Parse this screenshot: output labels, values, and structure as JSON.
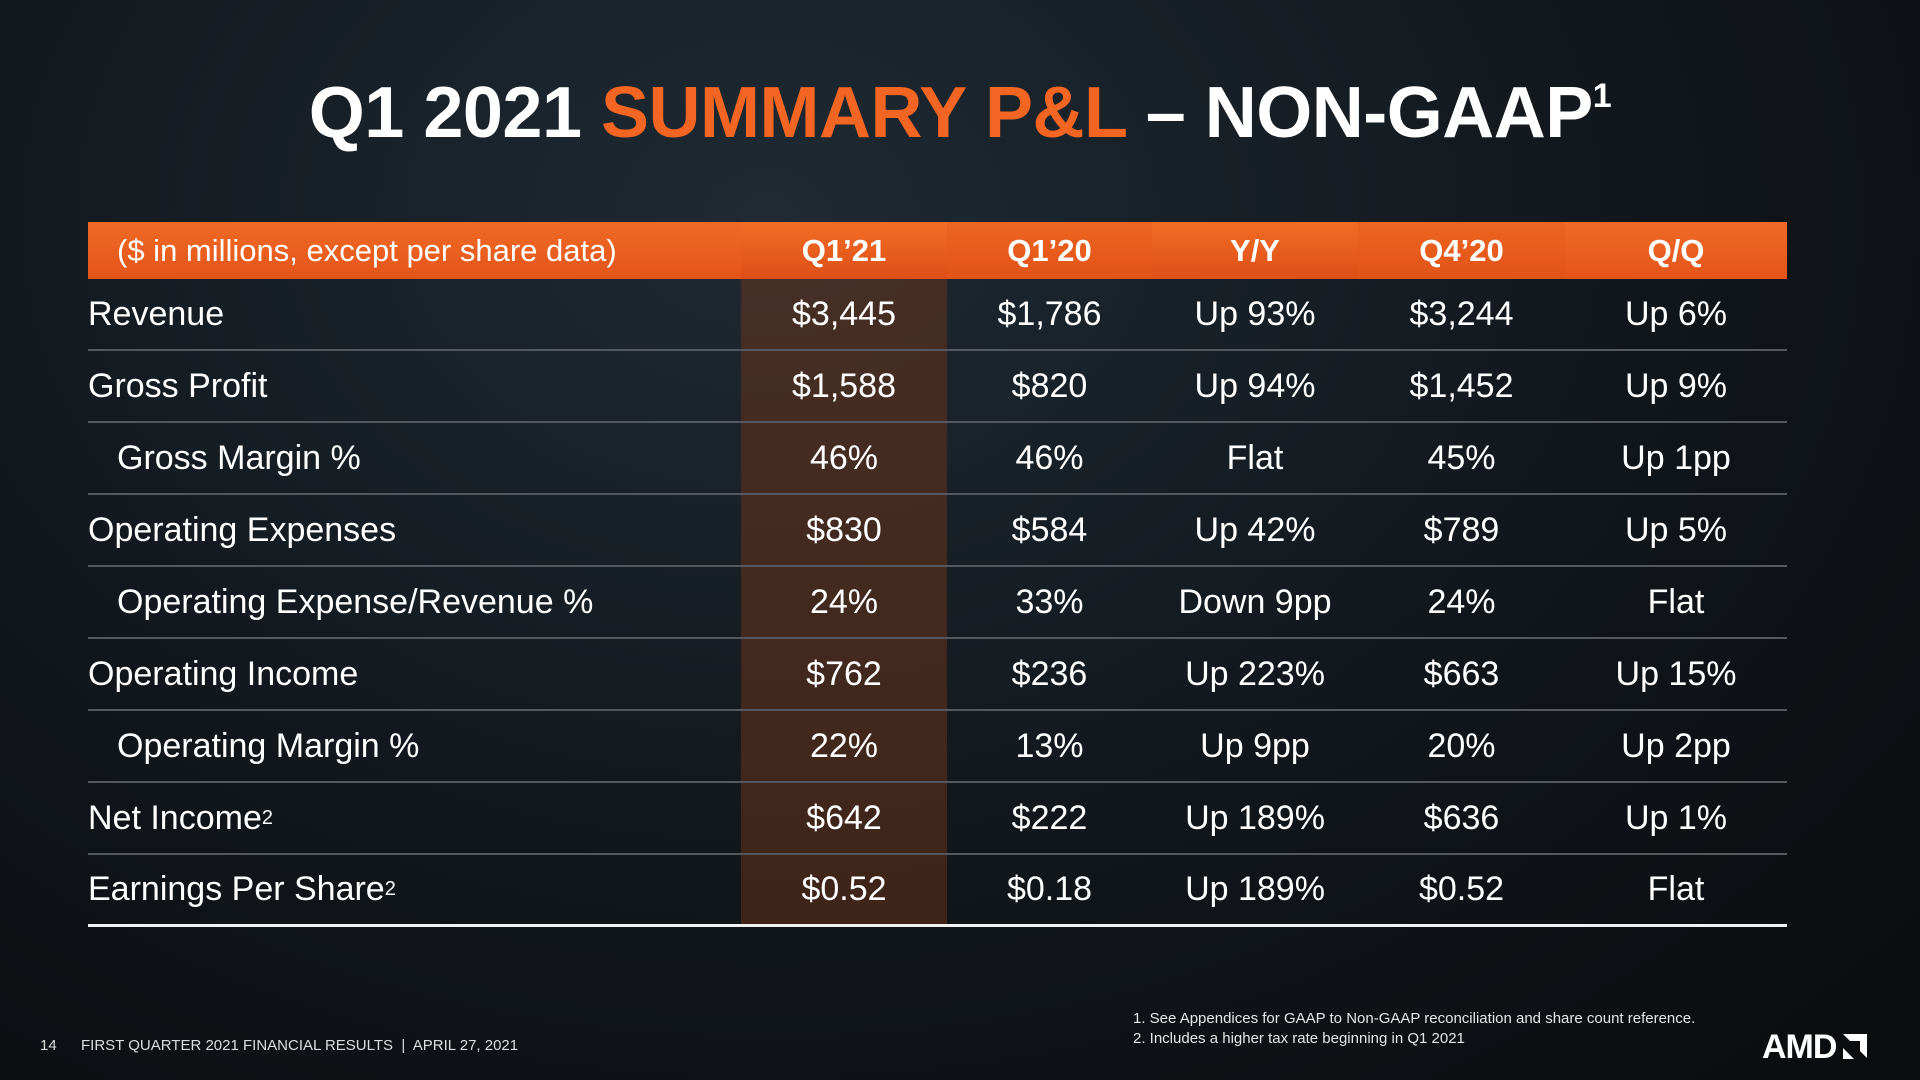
{
  "header": {
    "title_part1": "Q1 2021",
    "title_highlight": "SUMMARY P&L",
    "title_part2": "– NON-GAAP",
    "title_sup": "1"
  },
  "table": {
    "columns": [
      "($ in millions, except per share data)",
      "Q1’21",
      "Q1’20",
      "Y/Y",
      "Q4’20",
      "Q/Q"
    ],
    "rows": [
      {
        "label": "Revenue",
        "cells": [
          "$3,445",
          "$1,786",
          "Up 93%",
          "$3,244",
          "Up 6%"
        ]
      },
      {
        "label": "Gross Profit",
        "cells": [
          "$1,588",
          "$820",
          "Up 94%",
          "$1,452",
          "Up 9%"
        ]
      },
      {
        "label": "Gross Margin %",
        "cells": [
          "46%",
          "46%",
          "Flat",
          "45%",
          "Up 1pp"
        ]
      },
      {
        "label": "Operating Expenses",
        "cells": [
          "$830",
          "$584",
          "Up 42%",
          "$789",
          "Up 5%"
        ]
      },
      {
        "label": "Operating Expense/Revenue %",
        "cells": [
          "24%",
          "33%",
          "Down 9pp",
          "24%",
          "Flat"
        ]
      },
      {
        "label": "Operating Income",
        "cells": [
          "$762",
          "$236",
          "Up 223%",
          "$663",
          "Up 15%"
        ]
      },
      {
        "label": "Operating Margin %",
        "cells": [
          "22%",
          "13%",
          "Up 9pp",
          "20%",
          "Up 2pp"
        ]
      },
      {
        "label": "Net Income",
        "sup": "2",
        "cells": [
          "$642",
          "$222",
          "Up 189%",
          "$636",
          "Up 1%"
        ]
      },
      {
        "label": "Earnings Per Share",
        "sup": "2",
        "cells": [
          "$0.52",
          "$0.18",
          "Up 189%",
          "$0.52",
          "Flat"
        ]
      }
    ]
  },
  "footnotes": [
    "1. See Appendices for GAAP to Non-GAAP reconciliation and share count reference.",
    "2. Includes a higher tax rate beginning in Q1 2021"
  ],
  "footer": {
    "page": "14",
    "text": "FIRST QUARTER 2021 FINANCIAL RESULTS  |  APRIL 27, 2021",
    "logo": "AMD"
  }
}
